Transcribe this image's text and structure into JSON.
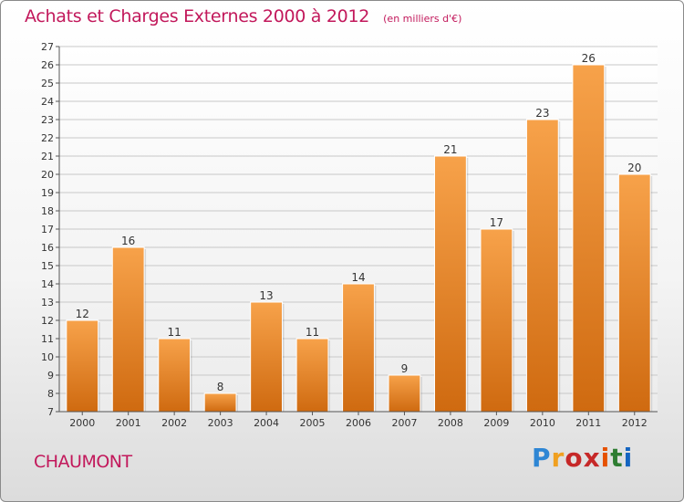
{
  "header": {
    "title": "Achats et Charges Externes 2000 à 2012",
    "units": "(en milliers d'€)"
  },
  "footer": {
    "city": "CHAUMONT",
    "brand_letters": [
      "P",
      "r",
      "o",
      "x",
      "i",
      "t",
      "i"
    ],
    "brand_colors": [
      "#2e86d4",
      "#f0a020",
      "#c62828",
      "#c62828",
      "#e65100",
      "#2e7d32",
      "#1565c0"
    ]
  },
  "chart_data": {
    "type": "bar",
    "categories": [
      "2000",
      "2001",
      "2002",
      "2003",
      "2004",
      "2005",
      "2006",
      "2007",
      "2008",
      "2009",
      "2010",
      "2011",
      "2012"
    ],
    "values": [
      12,
      16,
      11,
      8,
      13,
      11,
      14,
      9,
      21,
      17,
      23,
      26,
      20
    ],
    "ylim": [
      7,
      27
    ],
    "yticks": [
      7,
      8,
      9,
      10,
      11,
      12,
      13,
      14,
      15,
      16,
      17,
      18,
      19,
      20,
      21,
      22,
      23,
      24,
      25,
      26,
      27
    ],
    "grid": true,
    "bar_color_top": "#f7a24a",
    "bar_color_bottom": "#cf6a10",
    "grid_color": "#c8c8c8",
    "title_color": "#c2185b"
  }
}
